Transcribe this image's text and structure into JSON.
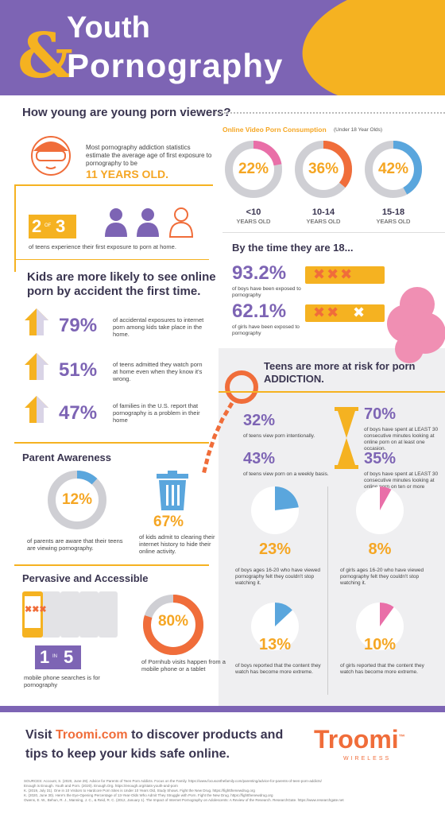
{
  "header": {
    "amp": "&",
    "title_line1": "Youth",
    "title_line2": "Pornography"
  },
  "section1": {
    "question": "How young are young porn viewers?",
    "intro_text": "Most pornography addiction statistics estimate the average age of first exposure to pornography to be",
    "age": "11 YEARS OLD.",
    "two_of": "2",
    "of_word": "OF",
    "three": "3",
    "two_of_three_text": "of teens experience their first exposure to porn at home."
  },
  "online_video": {
    "title": "Online Video Porn Consumption",
    "subtitle": "(Under 18 Year Olds)",
    "items": [
      {
        "pct": "22%",
        "value": 22,
        "age": "<10",
        "sub": "YEARS OLD",
        "color": "#e96fa8"
      },
      {
        "pct": "36%",
        "value": 36,
        "age": "10-14",
        "sub": "YEARS OLD",
        "color": "#f06d3a"
      },
      {
        "pct": "42%",
        "value": 42,
        "age": "15-18",
        "sub": "YEARS OLD",
        "color": "#5aa6dd"
      }
    ]
  },
  "by18": {
    "title": "By the time they are 18...",
    "boys_pct": "93.2%",
    "boys_text": "of boys have been exposed to pornography",
    "girls_pct": "62.1%",
    "girls_text": "of girls have been exposed to pornography"
  },
  "accident": {
    "title": "Kids are more likely to see online porn by accident the first time.",
    "items": [
      {
        "pct": "79%",
        "text": "of accidental exposures to internet porn among kids take place in the home."
      },
      {
        "pct": "51%",
        "text": "of teens admitted they watch porn at home even when they know it's wrong."
      },
      {
        "pct": "47%",
        "text": "of families in the U.S. report that pornography is a problem in their home"
      }
    ]
  },
  "addiction": {
    "title": "Teens are more at risk for porn ADDICTION.",
    "left": [
      {
        "pct": "32%",
        "text": "of teens view porn intentionally."
      },
      {
        "pct": "43%",
        "text": "of teens view porn on a weekly basis."
      }
    ],
    "right": [
      {
        "pct": "70%",
        "text": "of boys have spent at LEAST 30 consecutive minutes looking at online porn on at least one occasion."
      },
      {
        "pct": "35%",
        "text": "of boys have spent at LEAST 30 consecutive minutes looking at online porn on ten or more occasions."
      }
    ],
    "pies": [
      {
        "pct": "23%",
        "value": 23,
        "color": "#5aa6dd",
        "text": "of boys ages 16-20 who have viewed pornography felt they couldn't stop watching it."
      },
      {
        "pct": "8%",
        "value": 8,
        "color": "#e96fa8",
        "text": "of girls ages 16-20 who have viewed pornography felt they couldn't stop watching it."
      },
      {
        "pct": "13%",
        "value": 13,
        "color": "#5aa6dd",
        "text": "of boys reported that the content they watch has become more extreme."
      },
      {
        "pct": "10%",
        "value": 10,
        "color": "#e96fa8",
        "text": "of girls reported that the content they watch has become more extreme."
      }
    ]
  },
  "parent": {
    "title": "Parent Awareness",
    "pct": "12%",
    "value": 12,
    "text": "of parents are aware that their teens are viewing pornography.",
    "trash_pct": "67%",
    "trash_text": "of kids admit to clearing their internet history to hide their online activity."
  },
  "pervasive": {
    "title": "Pervasive and Accessible",
    "one": "1",
    "in_word": "IN",
    "five": "5",
    "in5_text": "mobile phone searches is for pornography",
    "pct": "80%",
    "value": 80,
    "pct_text": "of Pornhub visits happen from a mobile phone or a tablet"
  },
  "footer": {
    "visit_pre": "Visit ",
    "visit_link": "Troomi.com",
    "visit_post": " to discover products and tips to keep your kids safe online.",
    "logo": "Troomi",
    "logo_tm": "™",
    "wireless": "WIRELESS",
    "sources": [
      "SOURCES: Account, S. (2020, June 29). Advice for Parents of Teen Porn Addicts. Focus on the Family. https://www.focusonthefamily.com/parenting/advice-for-parents-of-teen-porn-addicts/",
      "Enough is Enough. Youth and Porn. (2020). Enough.Org. https://enough.org/stats-youth-and-porn",
      "K. (2019, July 31). One in 10 Visitors to Hardcore Porn Sites is Under 10 Years Old, Study Shows. Fight the New Drug. https://fightthenewdrug.org",
      "K. (2020, June 30). Here's the Eye-Opening Percentage of 13-Year-Olds Who Admit They Struggle with Porn. Fight the New Drug. https://fightthenewdrug.org",
      "Owens, E. W., Behun, R. J., Manning, J. C., & Reid, R. C. (2012, January 1). The Impact of Internet Pornography on Adolescents: A Review of the Research. ResearchGate. https://www.researchgate.net"
    ]
  },
  "colors": {
    "purple": "#7d64b4",
    "yellow": "#f5b221",
    "orange": "#f06d3a",
    "pink": "#e96fa8",
    "blue": "#5aa6dd",
    "grey": "#cfcfd4"
  }
}
